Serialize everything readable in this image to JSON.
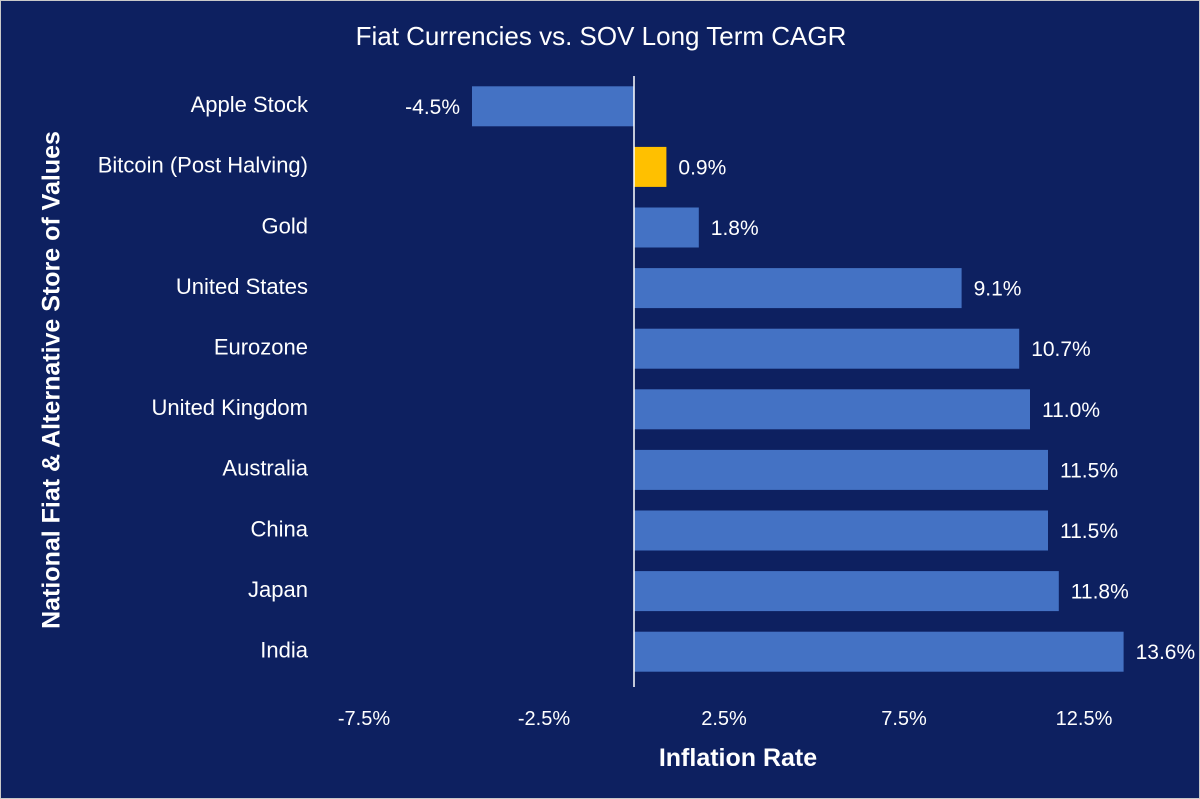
{
  "chart_data": {
    "type": "bar",
    "orientation": "horizontal",
    "title": "Fiat Currencies vs. SOV Long Term CAGR",
    "xlabel": "Inflation Rate",
    "ylabel": "National Fiat & Alternative Store of Values",
    "categories": [
      "Apple Stock",
      "Bitcoin (Post Halving)",
      "Gold",
      "United States",
      "Eurozone",
      "United Kingdom",
      "Australia",
      "China",
      "Japan",
      "India"
    ],
    "values": [
      -4.5,
      0.9,
      1.8,
      9.1,
      10.7,
      11.0,
      11.5,
      11.5,
      11.8,
      13.6
    ],
    "data_labels": [
      "-4.5%",
      "0.9%",
      "1.8%",
      "9.1%",
      "10.7%",
      "11.0%",
      "11.5%",
      "11.5%",
      "11.8%",
      "13.6%"
    ],
    "xticks": [
      -7.5,
      -2.5,
      2.5,
      7.5,
      12.5
    ],
    "xtick_labels": [
      "-7.5%",
      "-2.5%",
      "2.5%",
      "7.5%",
      "12.5%"
    ],
    "xlim": [
      -10,
      15
    ],
    "grid": false,
    "legend": "none",
    "colors": {
      "background": "#0d2060",
      "bar": "#4472c4",
      "highlight_bar": "#ffc000",
      "text": "#ffffff"
    },
    "highlight_category": "Bitcoin (Post Halving)"
  }
}
